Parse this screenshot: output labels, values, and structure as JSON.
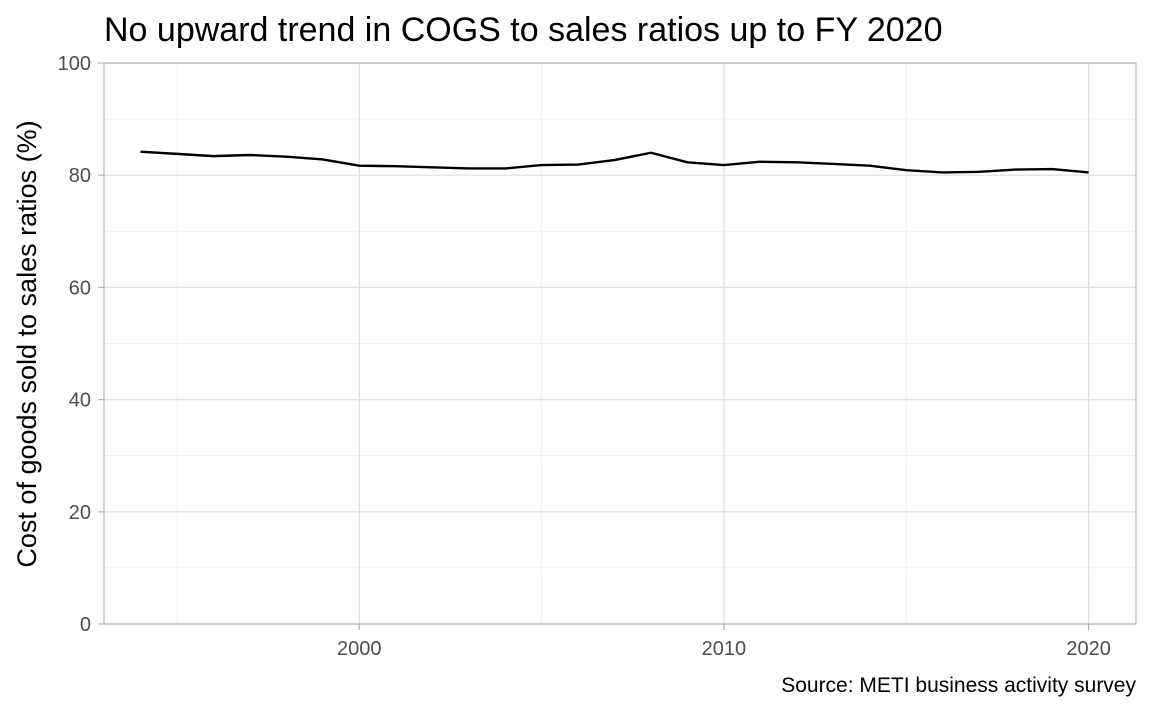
{
  "chart_data": {
    "type": "line",
    "title": "No upward trend in COGS to sales ratios up to FY 2020",
    "xlabel": "",
    "ylabel": "Cost of goods sold to sales ratios (%)",
    "caption": "Source: METI business activity survey",
    "xlim": [
      1993,
      2021.3
    ],
    "ylim": [
      0,
      100
    ],
    "x_ticks": [
      2000,
      2010,
      2020
    ],
    "x_tick_labels": [
      "2000",
      "2010",
      "2020"
    ],
    "x_minor_ticks": [
      1995,
      2005,
      2015
    ],
    "y_ticks": [
      0,
      20,
      40,
      60,
      80,
      100
    ],
    "y_tick_labels": [
      "0",
      "20",
      "40",
      "60",
      "80",
      "100"
    ],
    "y_minor_ticks": [
      10,
      30,
      50,
      70,
      90
    ],
    "grid": true,
    "legend": "none",
    "colors": {
      "line": "#000000",
      "grid_major": "#dedede",
      "grid_minor": "#efefef",
      "border": "#b3b3b3",
      "tick_label": "#4d4d4d"
    },
    "series": [
      {
        "x": [
          1994,
          1995,
          1996,
          1997,
          1998,
          1999,
          2000,
          2001,
          2002,
          2003,
          2004,
          2005,
          2006,
          2007,
          2008,
          2009,
          2010,
          2011,
          2012,
          2013,
          2014,
          2015,
          2016,
          2017,
          2018,
          2019,
          2020
        ],
        "values": [
          84.2,
          83.8,
          83.4,
          83.6,
          83.3,
          82.8,
          81.7,
          81.6,
          81.4,
          81.2,
          81.2,
          81.8,
          81.9,
          82.7,
          84.0,
          82.3,
          81.8,
          82.4,
          82.3,
          82.0,
          81.7,
          80.9,
          80.5,
          80.6,
          81.0,
          81.1,
          80.5
        ]
      }
    ]
  }
}
